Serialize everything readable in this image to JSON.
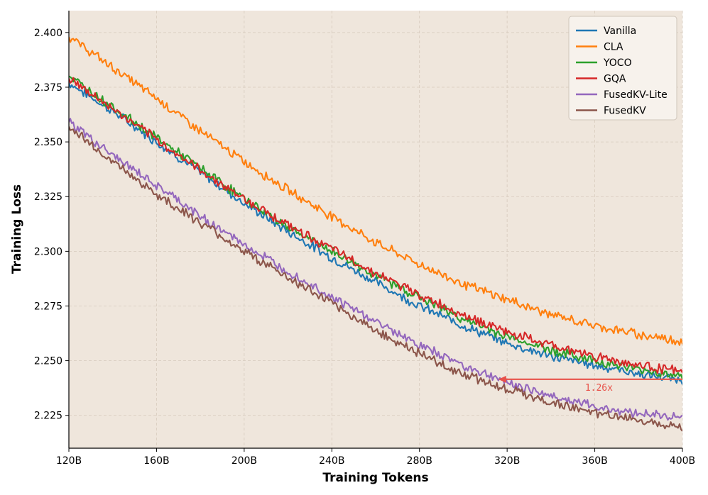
{
  "chart_data": {
    "type": "line",
    "title": "",
    "xlabel": "Training Tokens",
    "ylabel": "Training Loss",
    "x_unit": "B tokens",
    "xlim": [
      120,
      400
    ],
    "ylim": [
      2.21,
      2.41
    ],
    "x_ticks": [
      120,
      160,
      200,
      240,
      280,
      320,
      360,
      400
    ],
    "x_tick_labels": [
      "120B",
      "160B",
      "200B",
      "240B",
      "280B",
      "320B",
      "360B",
      "400B"
    ],
    "y_ticks": [
      2.225,
      2.25,
      2.275,
      2.3,
      2.325,
      2.35,
      2.375,
      2.4
    ],
    "y_tick_labels": [
      "2.225",
      "2.250",
      "2.275",
      "2.300",
      "2.325",
      "2.350",
      "2.375",
      "2.400"
    ],
    "grid": true,
    "legend_position": "top-right",
    "background_color": "#efe6dc",
    "x": [
      120,
      140,
      160,
      180,
      200,
      220,
      240,
      260,
      280,
      300,
      320,
      340,
      360,
      380,
      400
    ],
    "series": [
      {
        "name": "Vanilla",
        "color": "#1f77b4",
        "values": [
          2.377,
          2.364,
          2.35,
          2.336,
          2.322,
          2.309,
          2.297,
          2.286,
          2.275,
          2.266,
          2.258,
          2.252,
          2.248,
          2.244,
          2.241
        ]
      },
      {
        "name": "CLA",
        "color": "#ff7f0e",
        "values": [
          2.398,
          2.384,
          2.37,
          2.355,
          2.341,
          2.328,
          2.316,
          2.304,
          2.294,
          2.285,
          2.278,
          2.271,
          2.266,
          2.262,
          2.259
        ]
      },
      {
        "name": "YOCO",
        "color": "#2ca02c",
        "values": [
          2.38,
          2.366,
          2.352,
          2.338,
          2.324,
          2.311,
          2.3,
          2.289,
          2.279,
          2.269,
          2.261,
          2.255,
          2.25,
          2.246,
          2.243
        ]
      },
      {
        "name": "GQA",
        "color": "#d62728",
        "values": [
          2.379,
          2.365,
          2.351,
          2.337,
          2.324,
          2.312,
          2.301,
          2.29,
          2.28,
          2.271,
          2.263,
          2.257,
          2.252,
          2.248,
          2.245
        ]
      },
      {
        "name": "FusedKV-Lite",
        "color": "#9467bd",
        "values": [
          2.359,
          2.344,
          2.33,
          2.316,
          2.303,
          2.291,
          2.279,
          2.268,
          2.257,
          2.248,
          2.24,
          2.234,
          2.229,
          2.226,
          2.224
        ]
      },
      {
        "name": "FusedKV",
        "color": "#8c564b",
        "values": [
          2.357,
          2.341,
          2.326,
          2.313,
          2.3,
          2.288,
          2.276,
          2.264,
          2.253,
          2.244,
          2.237,
          2.231,
          2.226,
          2.223,
          2.22
        ]
      }
    ],
    "annotation": {
      "text": "1.26x",
      "color": "#e8524a",
      "arrow_from": [
        400,
        2.2415
      ],
      "arrow_to": [
        316,
        2.2415
      ]
    }
  }
}
